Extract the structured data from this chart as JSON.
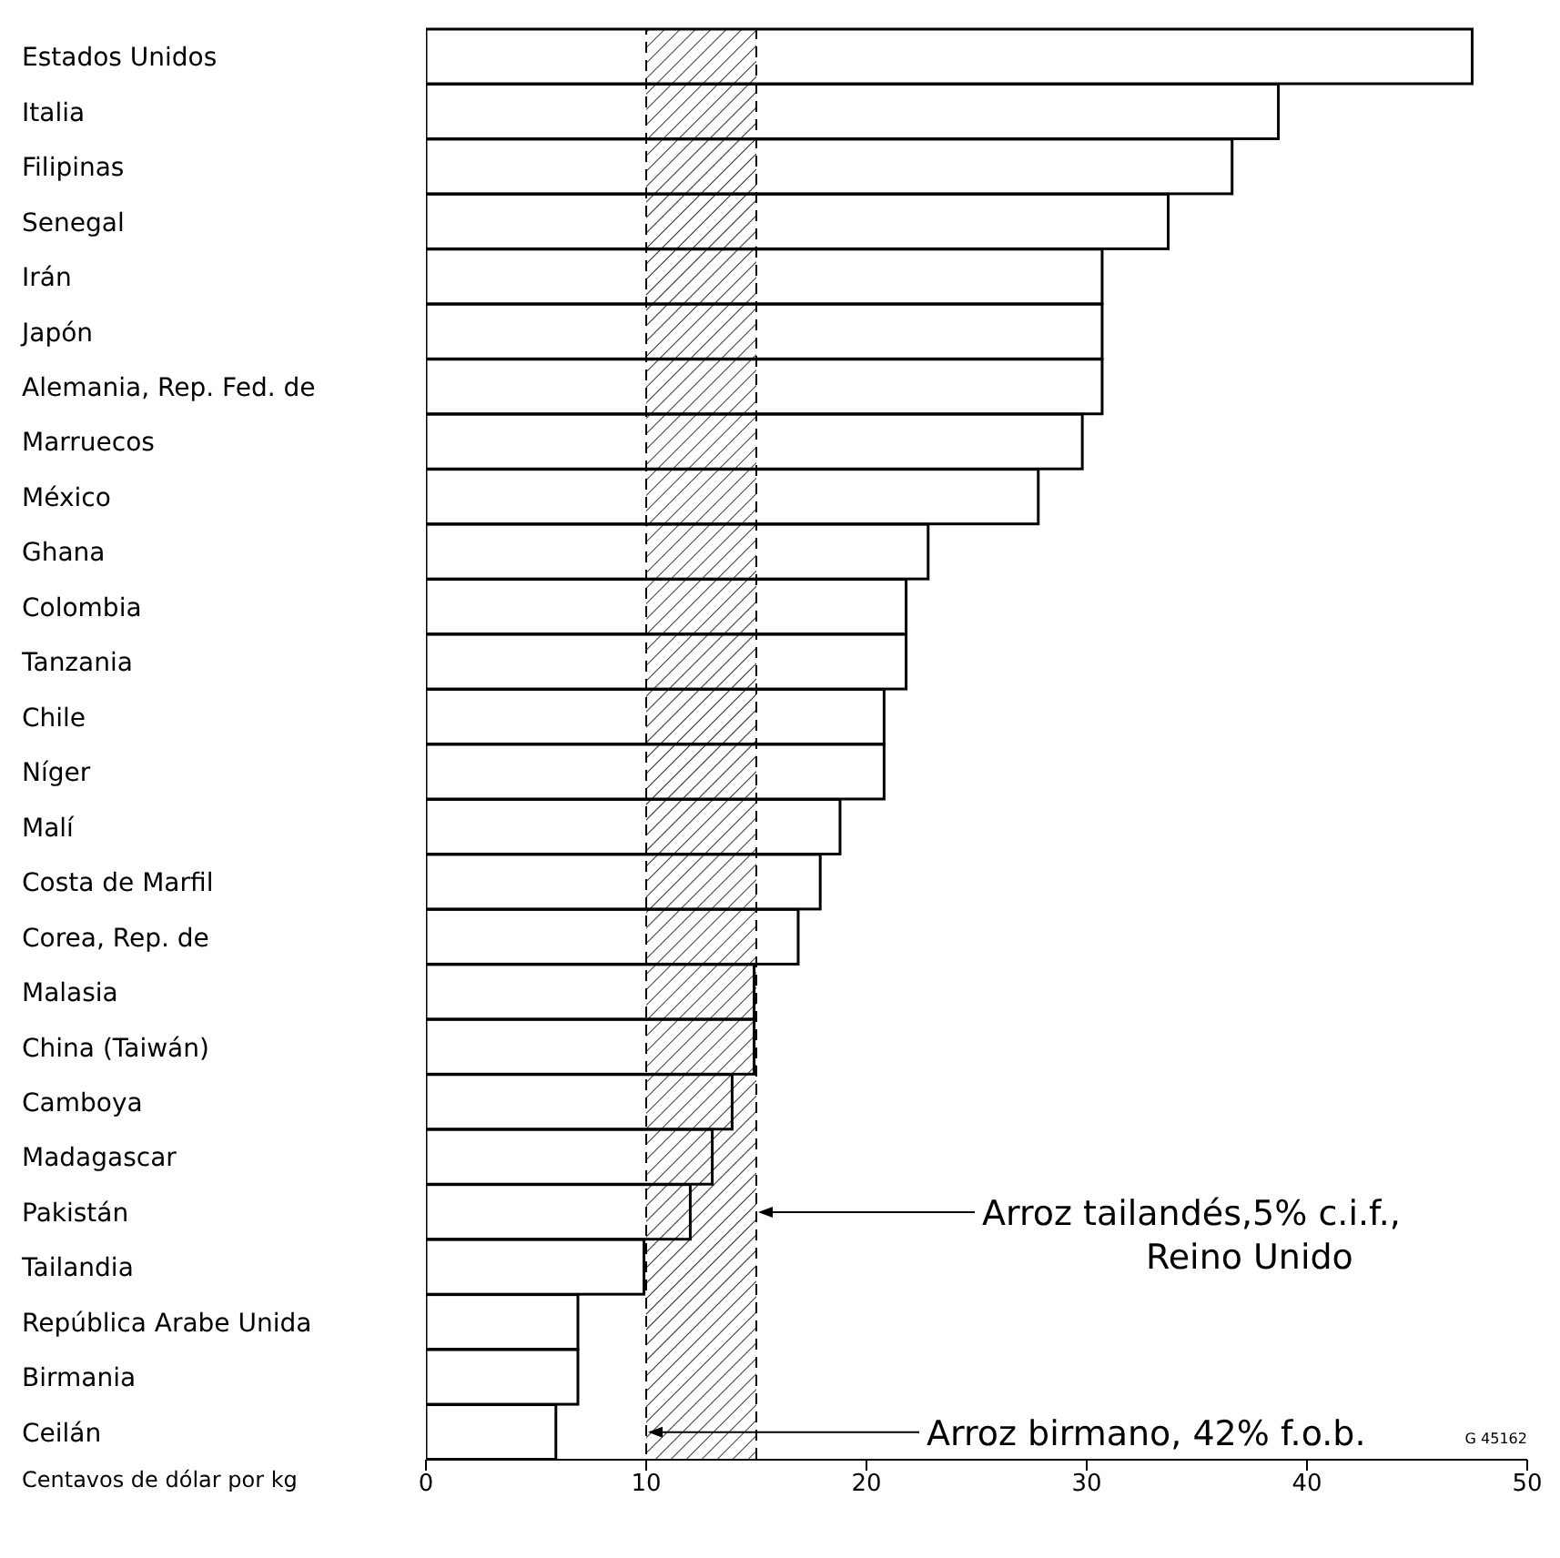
{
  "chart_data": {
    "type": "bar",
    "orientation": "horizontal",
    "xlabel": "Centavos de dólar por kg",
    "categories": [
      "Estados Unidos",
      "Italia",
      "Filipinas",
      "Senegal",
      "Irán",
      "Japón",
      "Alemania, Rep. Fed. de",
      "Marruecos",
      "México",
      "Ghana",
      "Colombia",
      "Tanzania",
      "Chile",
      "Níger",
      "Malí",
      "Costa de Marfil",
      "Corea, Rep. de",
      "Malasia",
      "China (Taiwán)",
      "Camboya",
      "Madagascar",
      "Pakistán",
      "Tailandia",
      "República Arabe Unida",
      "Birmania",
      "Ceilán"
    ],
    "values": [
      47.5,
      38.7,
      36.6,
      33.7,
      30.7,
      30.7,
      30.7,
      29.8,
      27.8,
      22.8,
      21.8,
      21.8,
      20.8,
      20.8,
      18.8,
      17.9,
      16.9,
      14.9,
      14.9,
      13.9,
      13.0,
      12.0,
      9.9,
      6.9,
      6.9,
      5.9
    ],
    "color": "#ffffff",
    "xlim": [
      0,
      50
    ],
    "xticks": [
      0,
      10,
      20,
      30,
      40,
      50
    ],
    "bands": [
      {
        "axis": "x",
        "from": 10,
        "to": 15,
        "color": "#000000"
      }
    ],
    "annotations": [
      {
        "text": "Arroz tailandés,5% c.i.f., Reino Unido",
        "x": 15,
        "y": "Pakistán"
      },
      {
        "text": "Arroz birmano, 42% f.o.b.",
        "x": 10,
        "y": "Ceilán"
      },
      "G 45162"
    ]
  }
}
